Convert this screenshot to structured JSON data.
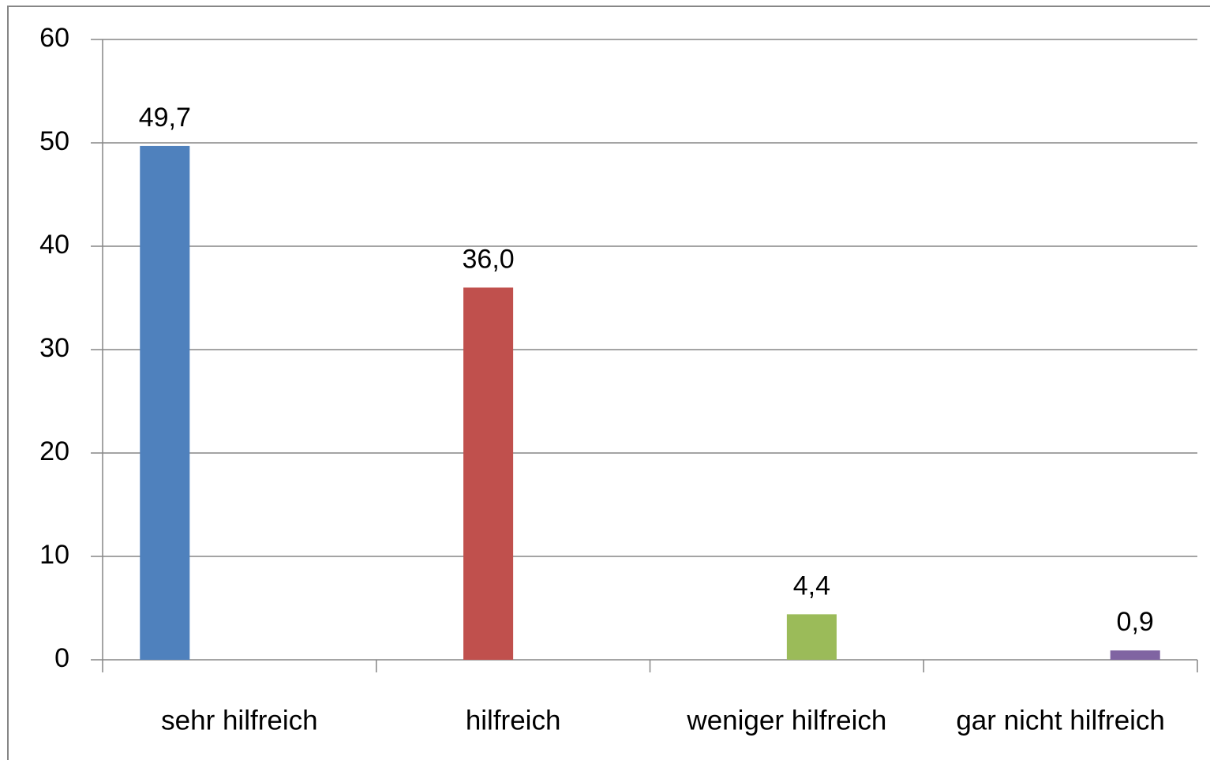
{
  "chart_data": {
    "type": "bar",
    "categories": [
      "sehr hilfreich",
      "hilfreich",
      "weniger hilfreich",
      "gar nicht hilfreich"
    ],
    "values": [
      49.7,
      36.0,
      4.4,
      0.9
    ],
    "value_labels": [
      "49,7",
      "36,0",
      "4,4",
      "0,9"
    ],
    "colors": [
      "#4f81bd",
      "#c0504d",
      "#9bbb59",
      "#8064a2"
    ],
    "ylim": [
      0,
      60
    ],
    "yticks": [
      0,
      10,
      20,
      30,
      40,
      50,
      60
    ],
    "grid": true
  }
}
